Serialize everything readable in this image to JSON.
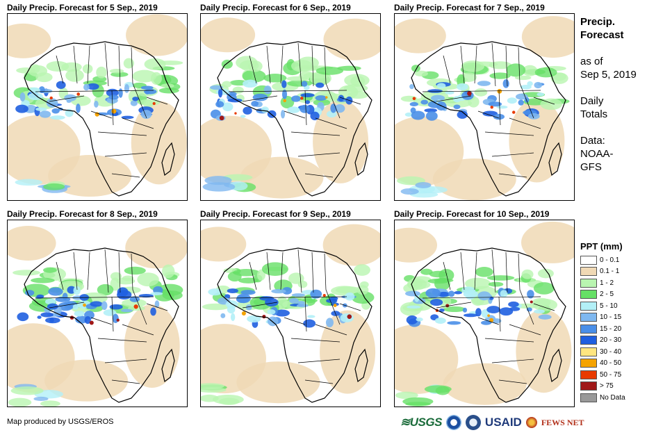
{
  "panels": [
    {
      "title": "Daily Precip. Forecast for 5 Sep., 2019"
    },
    {
      "title": "Daily Precip. Forecast for 6 Sep., 2019"
    },
    {
      "title": "Daily Precip. Forecast for 7 Sep., 2019"
    },
    {
      "title": "Daily Precip. Forecast for 8 Sep., 2019"
    },
    {
      "title": "Daily Precip. Forecast for 9 Sep., 2019"
    },
    {
      "title": "Daily Precip. Forecast for 10 Sep., 2019"
    }
  ],
  "info": {
    "heading1": "Precip.",
    "heading2": "Forecast",
    "asof1": "as of",
    "asof2": "Sep 5, 2019",
    "daily1": "Daily",
    "daily2": "Totals",
    "source1": "Data:",
    "source2": "NOAA-",
    "source3": "GFS"
  },
  "legend": {
    "title": "PPT (mm)",
    "items": [
      {
        "label": "0 - 0.1",
        "color": "#ffffff"
      },
      {
        "label": "0.1 - 1",
        "color": "#f0d9b5"
      },
      {
        "label": "1 - 2",
        "color": "#b9f5b0"
      },
      {
        "label": "2 - 5",
        "color": "#66e066"
      },
      {
        "label": "5 - 10",
        "color": "#b3f0f7"
      },
      {
        "label": "10 - 15",
        "color": "#7fb8f0"
      },
      {
        "label": "15 - 20",
        "color": "#4a8fe8"
      },
      {
        "label": "20 - 30",
        "color": "#1f5fe0"
      },
      {
        "label": "30 - 40",
        "color": "#ffe680"
      },
      {
        "label": "40 - 50",
        "color": "#f5a300"
      },
      {
        "label": "50 - 75",
        "color": "#e83a00"
      },
      {
        "label": "> 75",
        "color": "#a01818"
      },
      {
        "label": "No Data",
        "color": "#999999"
      }
    ]
  },
  "credit": "Map produced by USGS/EROS",
  "logos": {
    "usgs": "≋USGS",
    "usaid": "USAID",
    "fews": "FEWS NET"
  }
}
